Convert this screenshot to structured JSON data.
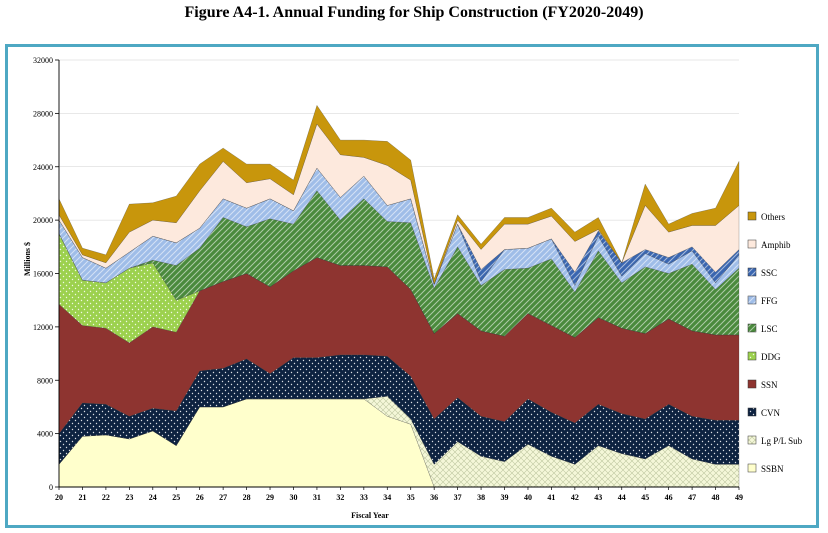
{
  "title": "Figure A4-1.  Annual Funding for Ship Construction (FY2020-2049)",
  "chart_data": {
    "type": "area",
    "stacked": true,
    "xlabel": "Fiscal Year",
    "ylabel": "Millions $",
    "ylim": [
      0,
      32000
    ],
    "yticks": [
      0,
      4000,
      8000,
      12000,
      16000,
      20000,
      24000,
      28000,
      32000
    ],
    "ytick_labels": [
      "0",
      "4000",
      "8000",
      "12000",
      "16000",
      "20000",
      "24000",
      "28000",
      "32000"
    ],
    "x": [
      20,
      21,
      22,
      23,
      24,
      25,
      26,
      27,
      28,
      29,
      30,
      31,
      32,
      33,
      34,
      35,
      36,
      37,
      38,
      39,
      40,
      41,
      42,
      43,
      44,
      45,
      46,
      47,
      48,
      49
    ],
    "x_labels": [
      "20",
      "21",
      "22",
      "23",
      "24",
      "25",
      "26",
      "27",
      "28",
      "29",
      "30",
      "31",
      "32",
      "33",
      "34",
      "35",
      "36",
      "37",
      "38",
      "39",
      "40",
      "41",
      "42",
      "43",
      "44",
      "45",
      "46",
      "47",
      "48",
      "49"
    ],
    "legend_position": "right",
    "series": [
      {
        "name": "SSBN",
        "color": "#ffffcc",
        "pattern": "plain",
        "values": [
          1700,
          3800,
          3900,
          3600,
          4200,
          3100,
          6000,
          6000,
          6600,
          6600,
          6600,
          6600,
          6600,
          6600,
          5300,
          4700,
          0,
          0,
          0,
          0,
          0,
          0,
          0,
          0,
          0,
          0,
          0,
          0,
          0,
          0
        ]
      },
      {
        "name": "Lg P/L Sub",
        "color": "#f4f7d8",
        "pattern": "grid",
        "values": [
          0,
          0,
          0,
          0,
          0,
          0,
          0,
          0,
          0,
          0,
          0,
          0,
          0,
          0,
          1500,
          400,
          1700,
          3400,
          2300,
          1900,
          3200,
          2300,
          1700,
          3100,
          2500,
          2100,
          3100,
          2100,
          1700,
          1700
        ]
      },
      {
        "name": "CVN",
        "color": "#0d2240",
        "pattern": "dots",
        "values": [
          2300,
          2500,
          2300,
          1700,
          1700,
          2600,
          2700,
          2900,
          3000,
          1900,
          3100,
          3100,
          3300,
          3300,
          3000,
          3200,
          3400,
          3300,
          3000,
          3000,
          3400,
          3300,
          3100,
          3100,
          3000,
          3000,
          3100,
          3200,
          3300,
          3300
        ]
      },
      {
        "name": "SSN",
        "color": "#8e3430",
        "pattern": "plain",
        "values": [
          9700,
          5800,
          5700,
          5500,
          6100,
          5900,
          6000,
          6500,
          6400,
          6500,
          6500,
          7500,
          6700,
          6700,
          6700,
          6500,
          6400,
          6300,
          6400,
          6400,
          6400,
          6500,
          6400,
          6500,
          6400,
          6400,
          6400,
          6400,
          6400,
          6400
        ]
      },
      {
        "name": "DDG",
        "color": "#9cd14e",
        "pattern": "dots",
        "values": [
          5300,
          3400,
          3400,
          5600,
          4800,
          2400,
          0,
          0,
          0,
          0,
          0,
          0,
          0,
          0,
          0,
          0,
          0,
          0,
          0,
          0,
          0,
          0,
          0,
          0,
          0,
          0,
          0,
          0,
          0,
          0
        ]
      },
      {
        "name": "LSC",
        "color": "#4a8a3c",
        "pattern": "diag",
        "values": [
          0,
          0,
          0,
          0,
          200,
          2600,
          3200,
          4800,
          3500,
          5100,
          3500,
          5000,
          3400,
          5000,
          3400,
          5000,
          3400,
          5000,
          3400,
          5000,
          3400,
          5000,
          3400,
          5000,
          3400,
          5000,
          3400,
          5000,
          3400,
          5000
        ]
      },
      {
        "name": "FFG",
        "color": "#9fbde8",
        "pattern": "diag",
        "values": [
          1000,
          1700,
          1100,
          1200,
          1800,
          1700,
          1500,
          1400,
          1400,
          1500,
          1000,
          1700,
          1700,
          1700,
          1200,
          1800,
          300,
          1700,
          300,
          1500,
          1500,
          1500,
          500,
          1100,
          500,
          1000,
          700,
          1000,
          500,
          1000
        ]
      },
      {
        "name": "SSC",
        "color": "#3a66b0",
        "pattern": "diag",
        "values": [
          0,
          0,
          0,
          0,
          0,
          0,
          0,
          0,
          0,
          0,
          0,
          0,
          0,
          0,
          0,
          0,
          0,
          0,
          900,
          0,
          0,
          0,
          1000,
          400,
          1000,
          300,
          500,
          300,
          800,
          400
        ]
      },
      {
        "name": "Amphib",
        "color": "#fde9dd",
        "pattern": "plain",
        "values": [
          400,
          200,
          400,
          1500,
          1200,
          1500,
          2800,
          2800,
          1900,
          1500,
          1200,
          3300,
          3200,
          1400,
          3000,
          1400,
          0,
          300,
          1500,
          1900,
          1800,
          1700,
          2300,
          100,
          0,
          3300,
          1900,
          1600,
          3500,
          3300
        ]
      },
      {
        "name": "Others",
        "color": "#c8960c",
        "pattern": "plain",
        "values": [
          1200,
          500,
          600,
          2100,
          1300,
          2000,
          2000,
          1000,
          1400,
          1100,
          1100,
          1400,
          1100,
          1300,
          1800,
          1500,
          400,
          400,
          400,
          500,
          500,
          600,
          700,
          900,
          0,
          1600,
          600,
          900,
          1300,
          3300
        ]
      }
    ]
  }
}
